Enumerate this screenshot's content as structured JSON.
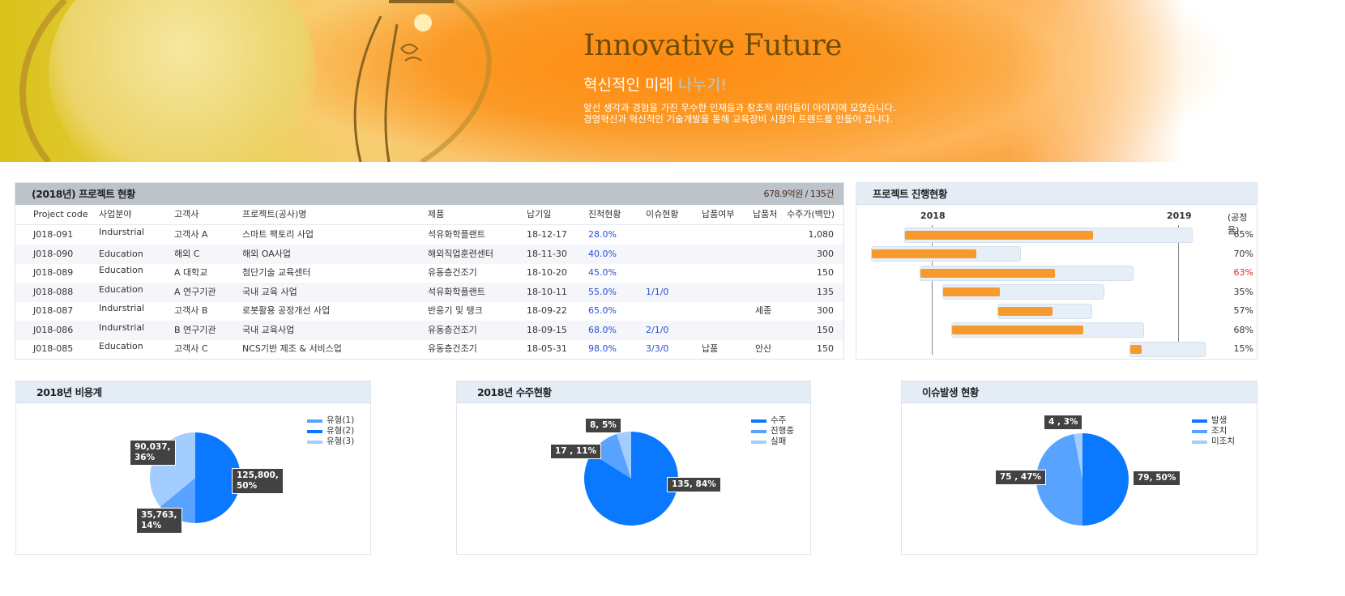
{
  "banner": {
    "title": "Innovative Future",
    "subtitle_main": "혁신적인 미래 ",
    "subtitle_highlight": "나누기!",
    "desc_line1": "앞선 생각과 경험을 가진 우수한 인재들과 창조적 리더들이 아이지에 모였습니다.",
    "desc_line2": "경영혁신과 혁신적인 기술개발을 통해 교육장비 시장의 트렌드를 만들어 갑니다."
  },
  "project_table": {
    "title": "(2018년) 프로젝트 현황",
    "total": "678.9억원 / 135건",
    "columns": [
      "Project code",
      "사업분야",
      "고객사",
      "프로젝트(공사)명",
      "제품",
      "납기일",
      "진척현황",
      "이슈현황",
      "납품여부",
      "납품처",
      "수주가(백만)"
    ],
    "rows": [
      [
        "J018-091",
        "Indurstrial",
        "고객사 A",
        "스마트 팩토리 사업",
        "석유화학플랜트",
        "18-12-17",
        "28.0%",
        "",
        "",
        "",
        "1,080"
      ],
      [
        "J018-090",
        "Education",
        "해외 C",
        "해외 OA사업",
        "해외직업훈련센터",
        "18-11-30",
        "40.0%",
        "",
        "",
        "",
        "300"
      ],
      [
        "J018-089",
        "Education",
        "A 대학교",
        "첨단기술 교육센터",
        "유동층건조기",
        "18-10-20",
        "45.0%",
        "",
        "",
        "",
        "150"
      ],
      [
        "J018-088",
        "Education",
        "A 연구기관",
        "국내 교육 사업",
        "석유화학플랜트",
        "18-10-11",
        "55.0%",
        "1/1/0",
        "",
        "",
        "135"
      ],
      [
        "J018-087",
        "Indurstrial",
        "고객사 B",
        "로봇활용 공정개선 사업",
        "반응기 및 탱크",
        "18-09-22",
        "65.0%",
        "",
        "",
        "세종",
        "300"
      ],
      [
        "J018-086",
        "Indurstrial",
        "B 연구기관",
        "국내 교육사업",
        "유동층건조기",
        "18-09-15",
        "68.0%",
        "2/1/0",
        "",
        "",
        "150"
      ],
      [
        "J018-085",
        "Education",
        "고객사 C",
        "NCS기반 제조 & 서비스업",
        "유동층건조기",
        "18-05-31",
        "98.0%",
        "3/3/0",
        "납품",
        "안산",
        "150"
      ]
    ]
  },
  "chart_data": [
    {
      "type": "gantt",
      "title": "프로젝트 진행현황",
      "x_ticks": [
        "2018",
        "2019"
      ],
      "right_header": "(공정율)",
      "bar_bg_color": "#e6eef7",
      "bar_fill_color": "#f79a2e",
      "tasks": [
        {
          "start": "2017-11-21",
          "end": "2019-01-23",
          "progress": 65,
          "label": "65%"
        },
        {
          "start": "2017-10-03",
          "end": "2018-05-13",
          "progress": 70,
          "label": "70%"
        },
        {
          "start": "2017-12-14",
          "end": "2018-10-27",
          "progress": 63,
          "label": "63%",
          "label_color": "#e0262a"
        },
        {
          "start": "2018-01-17",
          "end": "2018-09-14",
          "progress": 35,
          "label": "35%"
        },
        {
          "start": "2018-04-08",
          "end": "2018-08-27",
          "progress": 57,
          "label": "57%"
        },
        {
          "start": "2018-01-30",
          "end": "2018-11-12",
          "progress": 68,
          "label": "68%"
        },
        {
          "start": "2018-10-21",
          "end": "2019-02-11",
          "progress": 15,
          "label": "15%"
        }
      ]
    },
    {
      "type": "pie",
      "title": "2018년 비용계",
      "legend": [
        "유형(1)",
        "유형(2)",
        "유형(3)"
      ],
      "slices": [
        {
          "name": "유형(2)",
          "value": 125800,
          "percent": 50,
          "label": "125,800,\n50%",
          "color": "#0a78ff"
        },
        {
          "name": "유형(1)",
          "value": 35763,
          "percent": 14,
          "label": "35,763,\n14%",
          "color": "#57a3ff"
        },
        {
          "name": "유형(3)",
          "value": 90037,
          "percent": 36,
          "label": "90,037,\n36%",
          "color": "#a3cdff"
        }
      ]
    },
    {
      "type": "pie",
      "title": "2018년 수주현황",
      "legend": [
        "수주",
        "진행중",
        "실패"
      ],
      "slices": [
        {
          "name": "수주",
          "value": 135,
          "percent": 84,
          "label": "135, 84%",
          "color": "#0a78ff"
        },
        {
          "name": "진행중",
          "value": 17,
          "percent": 11,
          "label": "17 , 11%",
          "color": "#57a3ff"
        },
        {
          "name": "실패",
          "value": 8,
          "percent": 5,
          "label": "8, 5%",
          "color": "#a3cdff"
        }
      ]
    },
    {
      "type": "pie",
      "title": "이슈발생 현황",
      "legend": [
        "발생",
        "조치",
        "미조치"
      ],
      "slices": [
        {
          "name": "발생",
          "value": 79,
          "percent": 50,
          "label": "79, 50%",
          "color": "#0a78ff"
        },
        {
          "name": "조치",
          "value": 75,
          "percent": 47,
          "label": "75 , 47%",
          "color": "#57a3ff"
        },
        {
          "name": "미조치",
          "value": 4,
          "percent": 3,
          "label": "4 , 3%",
          "color": "#a3cdff"
        }
      ]
    }
  ],
  "colors": {
    "link_blue": "#2a4fd6",
    "table_header": "#bcc3cb",
    "panel_header": "#e4edf6",
    "accent_orange": "#f79a2e"
  }
}
